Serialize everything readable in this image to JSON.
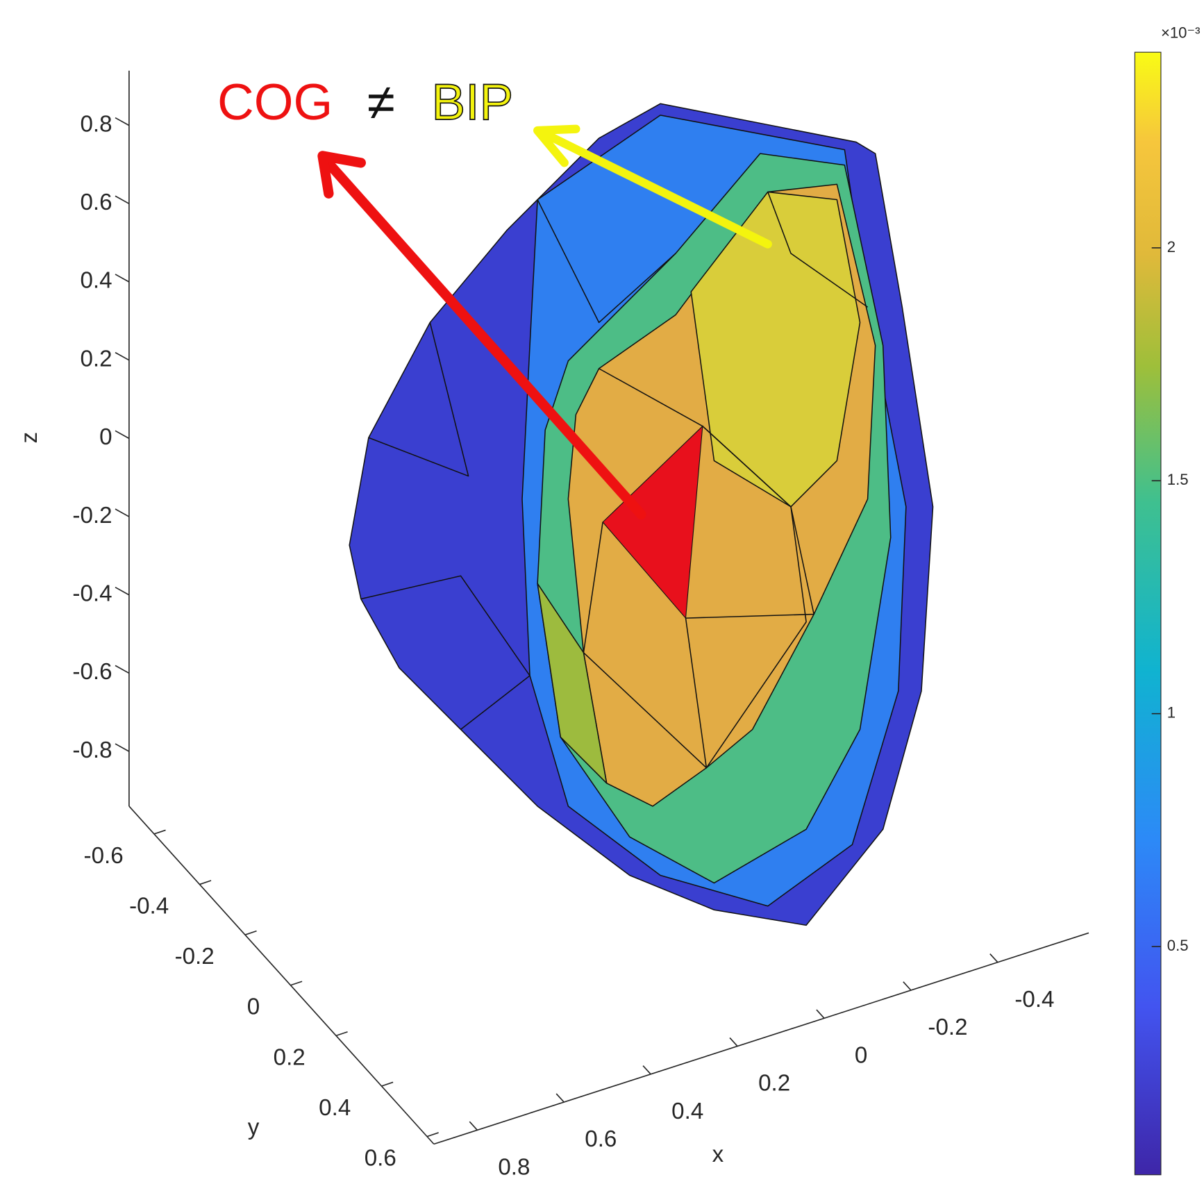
{
  "chart_data": {
    "type": "surface3d",
    "xlabel": "x",
    "ylabel": "y",
    "zlabel": "z",
    "xlim": [
      0.9,
      -0.61
    ],
    "xticks": [
      -0.4,
      -0.2,
      0,
      0.2,
      0.4,
      0.6,
      0.8
    ],
    "ylim": [
      -0.71,
      0.63
    ],
    "yticks": [
      -0.6,
      -0.4,
      -0.2,
      0,
      0.2,
      0.4,
      0.6
    ],
    "zlim": [
      -0.94,
      0.94
    ],
    "zticks": [
      -0.8,
      -0.6,
      -0.4,
      -0.2,
      0,
      0.2,
      0.4,
      0.6,
      0.8
    ],
    "colorbar": {
      "clim": [
        0.01,
        2.42
      ],
      "ticks": [
        0.5,
        1,
        1.5,
        2
      ],
      "multiplier": "×10⁻³"
    },
    "annotation": {
      "left": "COG",
      "relation": "≠",
      "right": "BIP"
    }
  }
}
